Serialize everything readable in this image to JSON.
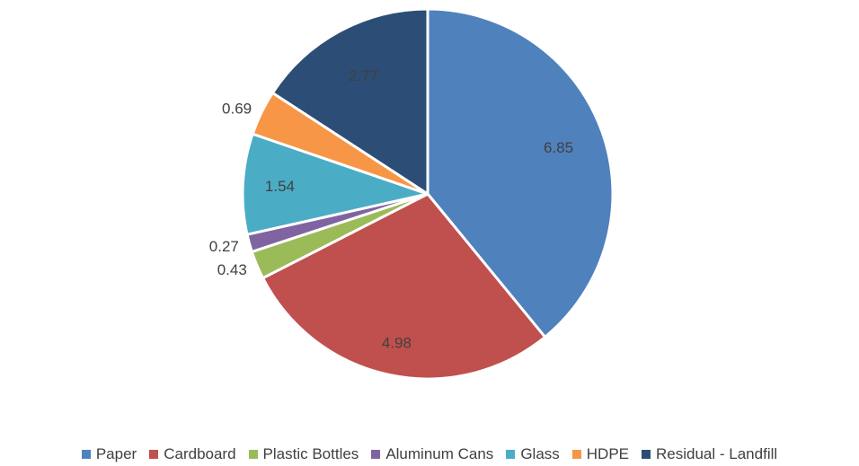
{
  "chart_data": {
    "type": "pie",
    "categories": [
      "Paper",
      "Cardboard",
      "Plastic Bottles",
      "Aluminum Cans",
      "Glass",
      "HDPE",
      "Residual - Landfill"
    ],
    "values": [
      6.85,
      4.98,
      0.43,
      0.27,
      1.54,
      0.69,
      2.77
    ],
    "data_labels": [
      "6.85",
      "4.98",
      "0.43",
      "0.27",
      "1.54",
      "0.69",
      "2.77"
    ],
    "colors": [
      "#4F81BD",
      "#C0504D",
      "#9BBB59",
      "#8064A2",
      "#4BACC6",
      "#F79646",
      "#2C4D75"
    ],
    "title": "",
    "legend_position": "bottom",
    "start_angle": "12 o'clock",
    "direction": "clockwise"
  }
}
